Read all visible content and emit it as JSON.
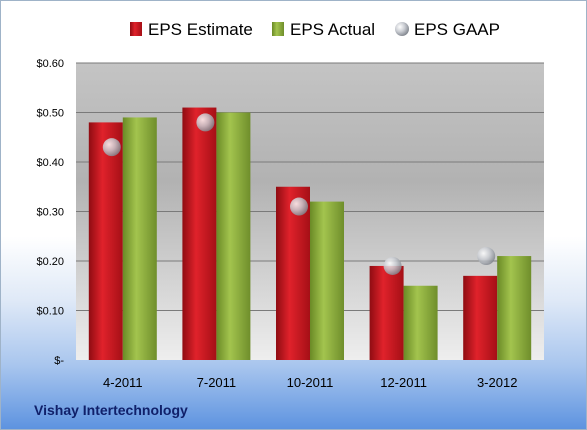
{
  "chart_data": {
    "type": "bar",
    "categories": [
      "4-2011",
      "7-2011",
      "10-2011",
      "12-2011",
      "3-2012"
    ],
    "series": [
      {
        "name": "EPS Estimate",
        "kind": "bar",
        "color": "#c0151d",
        "values": [
          0.48,
          0.51,
          0.35,
          0.19,
          0.17
        ]
      },
      {
        "name": "EPS Actual",
        "kind": "bar",
        "color": "#8aab3a",
        "values": [
          0.49,
          0.5,
          0.32,
          0.15,
          0.21
        ]
      },
      {
        "name": "EPS GAAP",
        "kind": "marker",
        "color": "#b9bcc2",
        "values": [
          0.43,
          0.48,
          0.31,
          0.19,
          0.21
        ]
      }
    ],
    "ylim": [
      0,
      0.6
    ],
    "yticks": [
      0,
      0.1,
      0.2,
      0.3,
      0.4,
      0.5,
      0.6
    ],
    "ytick_labels": [
      "$-",
      "$0.10",
      "$0.20",
      "$0.30",
      "$0.40",
      "$0.50",
      "$0.60"
    ],
    "legend_position": "top",
    "grid": true
  },
  "footer": {
    "company": "Vishay Intertechnology"
  }
}
